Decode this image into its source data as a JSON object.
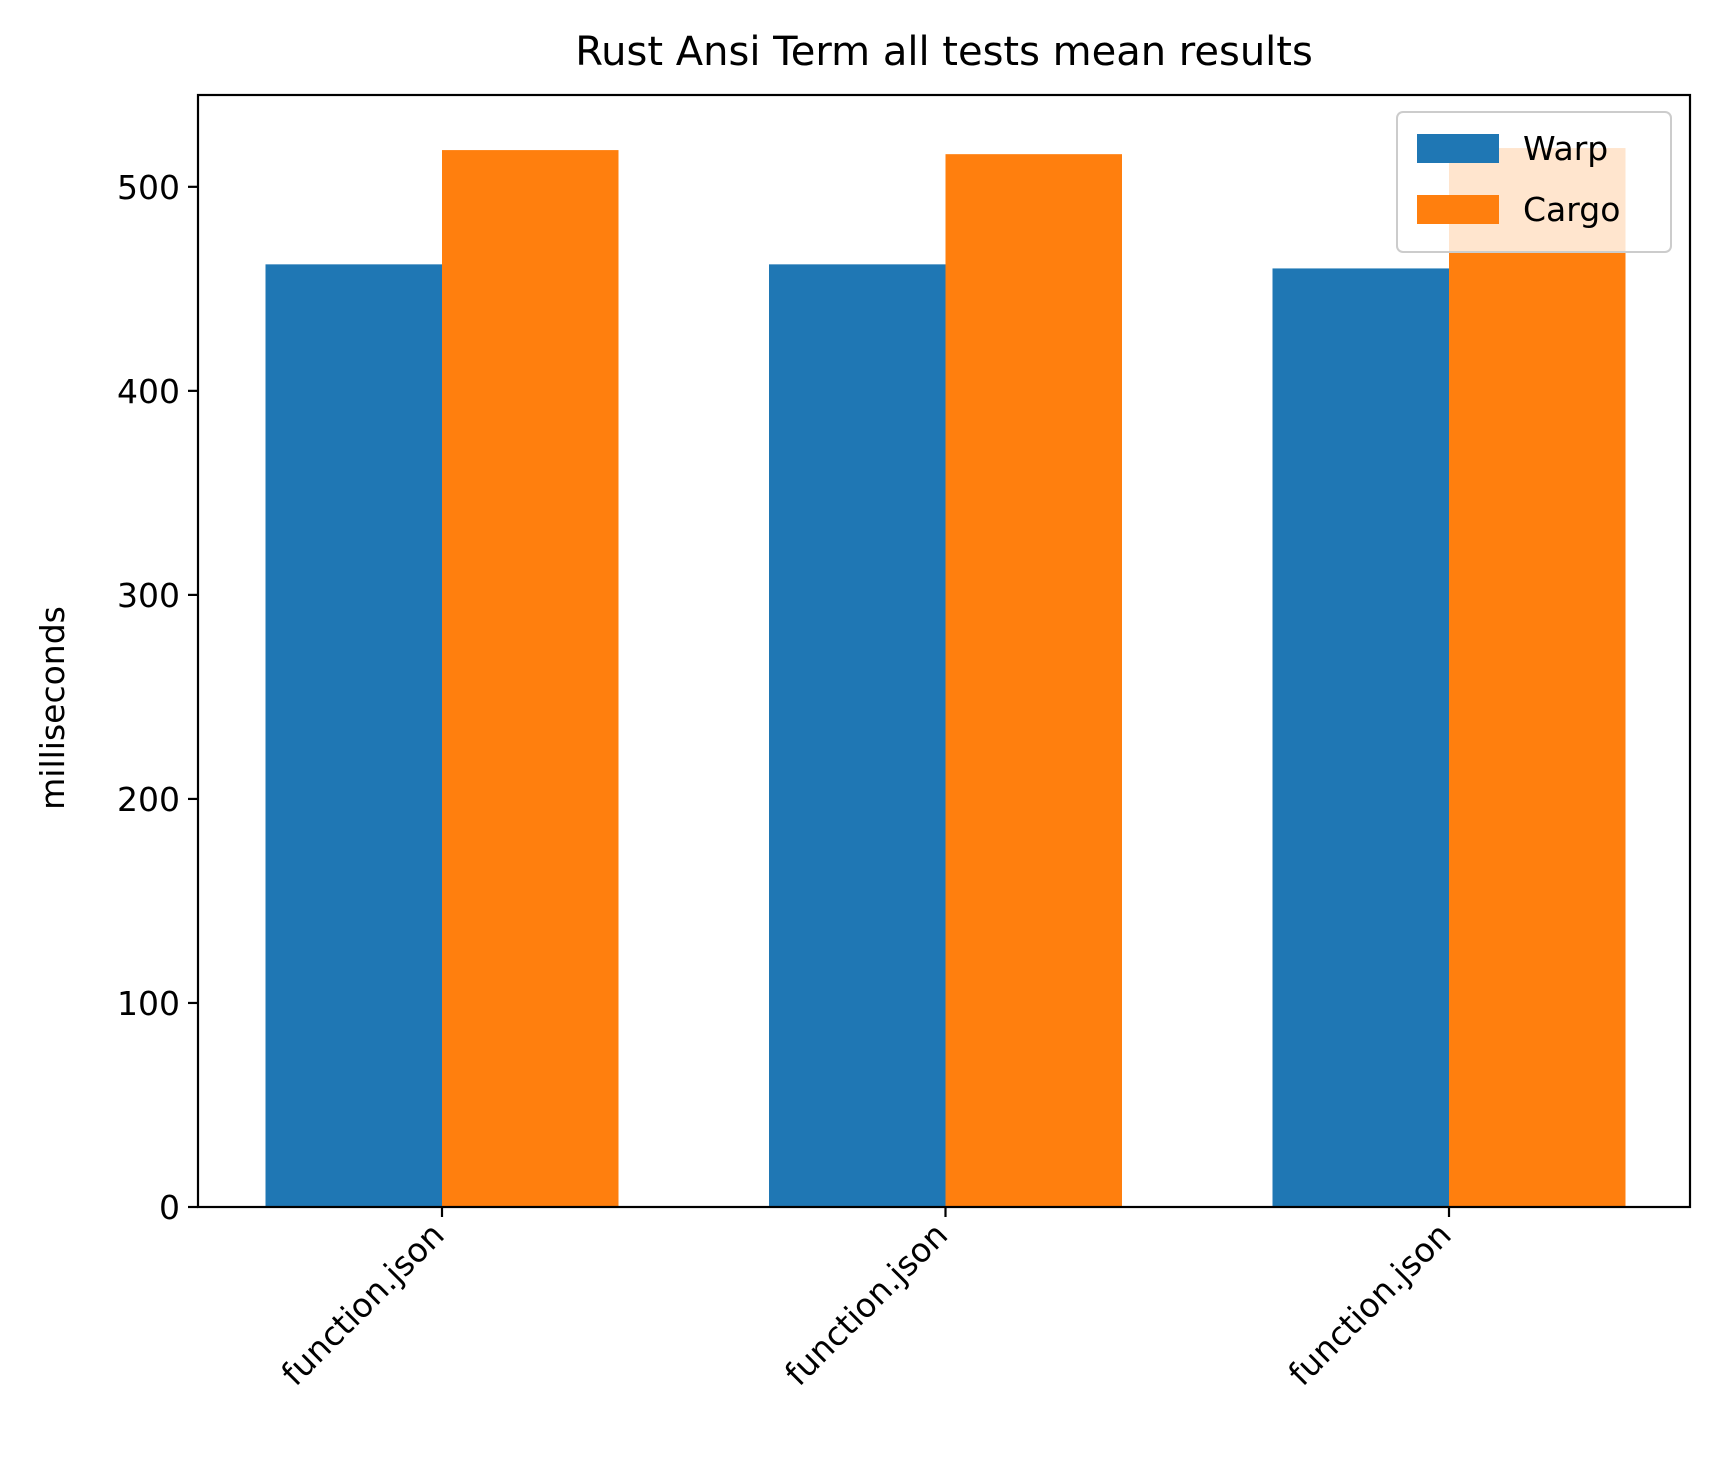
{
  "chart_data": {
    "type": "bar",
    "title": "Rust Ansi Term all tests mean results",
    "xlabel": "",
    "ylabel": "milliseconds",
    "categories": [
      "function.json",
      "function.json",
      "function.json"
    ],
    "series": [
      {
        "name": "Warp",
        "color": "#1f77b4",
        "values": [
          462,
          462,
          460
        ]
      },
      {
        "name": "Cargo",
        "color": "#ff7f0e",
        "values": [
          518,
          516,
          519
        ]
      }
    ],
    "ylim": [
      0,
      545
    ],
    "yticks": [
      0,
      100,
      200,
      300,
      400,
      500
    ],
    "grid": false,
    "legend_position": "upper right",
    "x_tick_rotation_deg": 45
  }
}
